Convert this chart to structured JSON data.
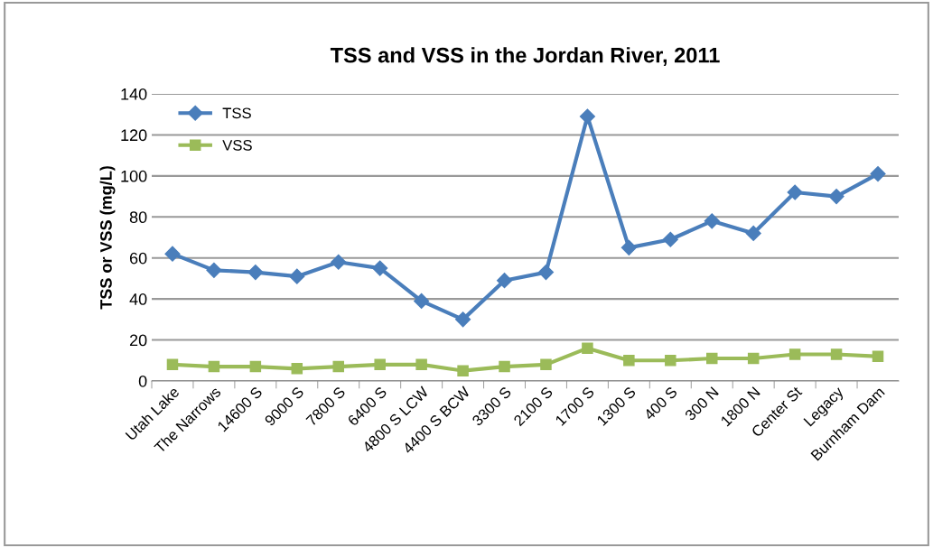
{
  "chart_data": {
    "type": "line",
    "title": "TSS and VSS in the Jordan River, 2011",
    "ylabel": "TSS or VSS (mg/L)",
    "categories": [
      "Utah Lake",
      "The Narrows",
      "14600 S",
      "9000 S",
      "7800 S",
      "6400 S",
      "4800 S LCW",
      "4400 S BCW",
      "3300 S",
      "2100 S",
      "1700 S",
      "1300 S",
      "400 S",
      "300 N",
      "1800 N",
      "Center St",
      "Legacy",
      "Burnham Dam"
    ],
    "series": [
      {
        "name": "TSS",
        "color": "#4a7ebb",
        "marker": "diamond",
        "values": [
          62,
          54,
          53,
          51,
          58,
          55,
          39,
          30,
          49,
          53,
          129,
          65,
          69,
          78,
          72,
          92,
          90,
          101
        ]
      },
      {
        "name": "VSS",
        "color": "#9bbb59",
        "marker": "square",
        "values": [
          8,
          7,
          7,
          6,
          7,
          8,
          8,
          5,
          7,
          8,
          16,
          10,
          10,
          11,
          11,
          13,
          13,
          12
        ]
      }
    ],
    "ylim": [
      0,
      140
    ],
    "yticks": [
      0,
      20,
      40,
      60,
      80,
      100,
      120,
      140
    ],
    "grid": "y",
    "legend": "top left"
  }
}
